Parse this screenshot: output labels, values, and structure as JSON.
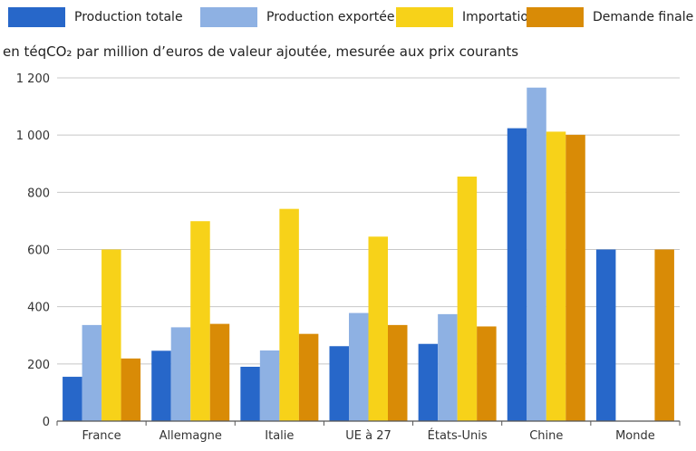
{
  "colors": {
    "production_totale": "#2767c9",
    "production_exportee": "#8eb1e3",
    "importations": "#f7d219",
    "demande_finale": "#d98b06",
    "grid": "#c8c8c8",
    "axis": "#555555"
  },
  "legend": [
    {
      "label": "Production totale"
    },
    {
      "label": "Production exportée"
    },
    {
      "label": "Importations"
    },
    {
      "label": "Demande finale"
    }
  ],
  "chart_data": {
    "type": "bar",
    "ylabel": "en téqCO₂ par million d’euros de valeur ajoutée, mesurée aux prix courants",
    "ylim": [
      0,
      1200
    ],
    "yticks": [
      0,
      200,
      400,
      600,
      800,
      1000,
      1200
    ],
    "ytick_labels": [
      "0",
      "200",
      "400",
      "600",
      "800",
      "1 000",
      "1 200"
    ],
    "grid": true,
    "legend_position": "top",
    "categories": [
      "France",
      "Allemagne",
      "Italie",
      "UE à 27",
      "États-Unis",
      "Chine",
      "Monde"
    ],
    "series": [
      {
        "name": "Production totale",
        "values": [
          155,
          246,
          190,
          262,
          270,
          1024,
          600
        ]
      },
      {
        "name": "Production exportée",
        "values": [
          336,
          328,
          247,
          378,
          374,
          1166,
          null
        ]
      },
      {
        "name": "Importations",
        "values": [
          600,
          699,
          742,
          645,
          855,
          1012,
          null
        ]
      },
      {
        "name": "Demande finale",
        "values": [
          219,
          340,
          305,
          336,
          331,
          1001,
          600
        ]
      }
    ]
  }
}
